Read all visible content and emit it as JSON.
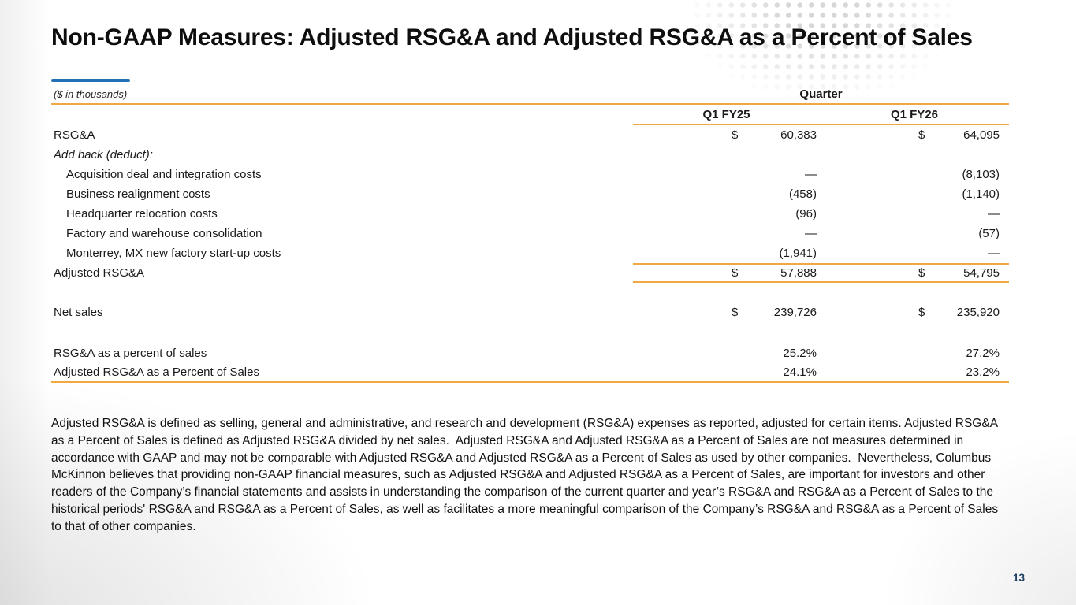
{
  "slide": {
    "title": "Non-GAAP Measures: Adjusted RSG&A and Adjusted RSG&A as a Percent of Sales",
    "page_number": "13",
    "colors": {
      "accent_blue": "#2271b6",
      "rule_orange": "#f0a843",
      "page_number_navy": "#1d3e5f"
    }
  },
  "table": {
    "units_note": "($ in thousands)",
    "group_header": "Quarter",
    "columns": [
      "Q1 FY25",
      "Q1 FY26"
    ],
    "rows": [
      {
        "label": "RSG&A",
        "cur1": "$",
        "v1": "60,383",
        "cur2": "$",
        "v2": "64,095"
      },
      {
        "label": "Add back (deduct):",
        "cur1": "",
        "v1": "",
        "cur2": "",
        "v2": ""
      },
      {
        "label": "Acquisition deal and integration costs",
        "cur1": "",
        "v1": "—",
        "cur2": "",
        "v2": "(8,103)"
      },
      {
        "label": "Business realignment costs",
        "cur1": "",
        "v1": "(458)",
        "cur2": "",
        "v2": "(1,140)"
      },
      {
        "label": "Headquarter relocation costs",
        "cur1": "",
        "v1": "(96)",
        "cur2": "",
        "v2": "—"
      },
      {
        "label": "Factory and warehouse consolidation",
        "cur1": "",
        "v1": "—",
        "cur2": "",
        "v2": "(57)"
      },
      {
        "label": "Monterrey, MX new factory start-up costs",
        "cur1": "",
        "v1": "(1,941)",
        "cur2": "",
        "v2": "—"
      },
      {
        "label": "Adjusted RSG&A",
        "cur1": "$",
        "v1": "57,888",
        "cur2": "$",
        "v2": "54,795"
      },
      {
        "label": "Net sales",
        "cur1": "$",
        "v1": "239,726",
        "cur2": "$",
        "v2": "235,920"
      },
      {
        "label": "RSG&A as a percent of sales",
        "cur1": "",
        "v1": "25.2%",
        "cur2": "",
        "v2": "27.2%"
      },
      {
        "label": "Adjusted RSG&A as a Percent of Sales",
        "cur1": "",
        "v1": "24.1%",
        "cur2": "",
        "v2": "23.2%"
      }
    ]
  },
  "footnote": "Adjusted RSG&A is defined as selling, general and administrative, and research and development (RSG&A) expenses as reported, adjusted for certain items. Adjusted RSG&A as a Percent of Sales is defined as Adjusted RSG&A divided by net sales.  Adjusted RSG&A and Adjusted RSG&A as a Percent of Sales are not measures determined in accordance with GAAP and may not be comparable with Adjusted RSG&A and Adjusted RSG&A as a Percent of Sales as used by other companies.  Nevertheless, Columbus McKinnon believes that providing non-GAAP financial measures, such as Adjusted RSG&A and Adjusted RSG&A as a Percent of Sales, are important for investors and other readers of the Company’s financial statements and assists in understanding the comparison of the current quarter and year’s RSG&A and RSG&A as a Percent of Sales to the historical periods' RSG&A and RSG&A as a Percent of Sales, as well as facilitates a more meaningful comparison of the Company’s RSG&A and RSG&A as a Percent of Sales to that of other companies."
}
